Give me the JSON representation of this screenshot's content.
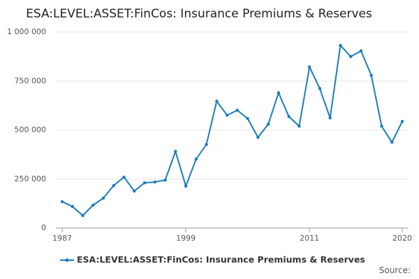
{
  "chart_data": {
    "type": "line",
    "title": "ESA:LEVEL:ASSET:FinCos: Insurance Premiums & Reserves",
    "x": [
      1987,
      1988,
      1989,
      1990,
      1991,
      1992,
      1993,
      1994,
      1995,
      1996,
      1997,
      1998,
      1999,
      2000,
      2001,
      2002,
      2003,
      2004,
      2005,
      2006,
      2007,
      2008,
      2009,
      2010,
      2011,
      2012,
      2013,
      2014,
      2015,
      2016,
      2017,
      2018,
      2019,
      2020
    ],
    "series": [
      {
        "name": "ESA:LEVEL:ASSET:FinCos: Insurance Premiums & Reserves",
        "color": "#1a7dba",
        "values": [
          135000,
          110000,
          64000,
          117000,
          153000,
          217000,
          260000,
          189000,
          231000,
          235000,
          245000,
          391000,
          214000,
          352000,
          427000,
          648000,
          576000,
          601000,
          559000,
          463000,
          530000,
          690000,
          569000,
          520000,
          822000,
          712000,
          562000,
          932000,
          875000,
          904000,
          779000,
          520000,
          438000,
          544000
        ]
      }
    ],
    "xlim": [
      1987,
      2020
    ],
    "xticks": [
      1987,
      1999,
      2011,
      2020
    ],
    "ylim": [
      0,
      1000000
    ],
    "yticks": [
      0,
      {
        "value": 250000,
        "label": "250 000"
      },
      {
        "value": 500000,
        "label": "500 000"
      },
      {
        "value": 750000,
        "label": "750 000"
      },
      {
        "value": 1000000,
        "label": "1 000 000"
      }
    ],
    "grid": true,
    "legend": "bottom",
    "source": "Source:"
  }
}
